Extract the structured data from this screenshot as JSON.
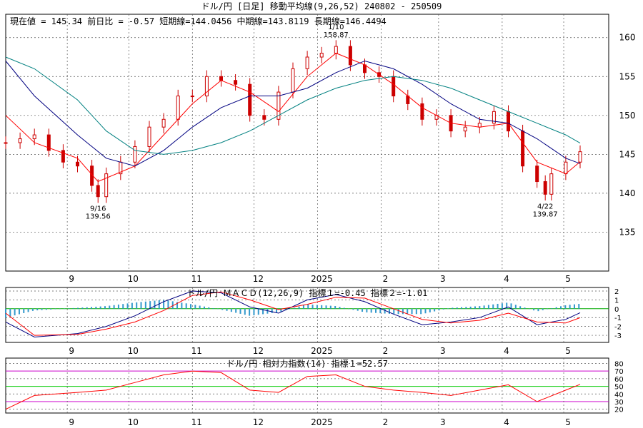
{
  "header": {
    "title": "ドル/円 [日足]  移動平均線(9,26,52)  240802 - 250509",
    "info": "現在値 = 145.34  前日比 = -0.57   短期線=144.0456   中期線=143.8119   長期線=146.4494"
  },
  "colors": {
    "background": "#ffffff",
    "candle": "#cc0000",
    "short_ma": "#ff0000",
    "mid_ma": "#000080",
    "long_ma": "#008080",
    "grid": "#555555",
    "macd_hist": "#3399cc",
    "macd_zero": "#00aa00",
    "macd_line": "#000080",
    "signal_line": "#ff0000",
    "rsi_line": "#ff0000",
    "rsi_band_outer": "#cc00cc",
    "rsi_band_mid": "#00cc00"
  },
  "chart_data": [
    {
      "type": "line",
      "title": "ドル/円 [日足]  移動平均線(9,26,52)  240802 - 250509",
      "x_labels": [
        "9",
        "10",
        "11",
        "12",
        "2025",
        "2",
        "3",
        "4",
        "5"
      ],
      "y_ticks": [
        "160",
        "155",
        "150",
        "145",
        "140",
        "135"
      ],
      "ylim": [
        130,
        163
      ],
      "grid": true,
      "series": [
        {
          "name": "終値",
          "x": [
            "08-02",
            "08-09",
            "08-16",
            "08-23",
            "08-30",
            "09-06",
            "09-13",
            "09-16",
            "09-20",
            "09-27",
            "10-04",
            "10-11",
            "10-18",
            "10-25",
            "11-01",
            "11-08",
            "11-15",
            "11-22",
            "11-29",
            "12-06",
            "12-13",
            "12-20",
            "12-27",
            "01-03",
            "01-10",
            "01-17",
            "01-24",
            "01-31",
            "02-07",
            "02-14",
            "02-21",
            "02-28",
            "03-07",
            "03-14",
            "03-21",
            "03-28",
            "04-04",
            "04-11",
            "04-18",
            "04-22",
            "04-25",
            "05-02",
            "05-09"
          ],
          "values": [
            146.5,
            147.0,
            147.5,
            145.5,
            144.0,
            143.5,
            141.0,
            139.56,
            142.5,
            144.0,
            146.0,
            148.5,
            149.5,
            152.5,
            152.5,
            155.0,
            154.5,
            154.0,
            150.0,
            149.5,
            153.0,
            156.0,
            157.5,
            158.0,
            158.87,
            156.5,
            155.5,
            155.0,
            152.5,
            151.5,
            149.5,
            150.0,
            148.0,
            148.5,
            149.0,
            150.5,
            148.0,
            143.5,
            141.5,
            139.87,
            142.5,
            144.0,
            145.34
          ]
        }
      ],
      "moving_averages": [
        {
          "label": "短期線",
          "x": [
            "08-02",
            "08-16",
            "09-06",
            "09-16",
            "10-04",
            "10-18",
            "11-01",
            "11-15",
            "11-29",
            "12-13",
            "12-27",
            "01-10",
            "01-24",
            "02-07",
            "02-21",
            "03-07",
            "03-21",
            "04-04",
            "04-18",
            "05-02",
            "05-09"
          ],
          "values": [
            150.0,
            146.5,
            144.5,
            141.5,
            143.5,
            147.5,
            151.5,
            154.5,
            153.0,
            150.5,
            155.0,
            158.0,
            156.5,
            154.0,
            151.0,
            149.0,
            148.5,
            149.0,
            144.0,
            142.5,
            144.0456
          ]
        },
        {
          "label": "中期線",
          "x": [
            "08-02",
            "08-16",
            "09-06",
            "09-20",
            "10-04",
            "10-18",
            "11-01",
            "11-15",
            "11-29",
            "12-13",
            "12-27",
            "01-10",
            "01-24",
            "02-07",
            "02-21",
            "03-07",
            "03-21",
            "04-04",
            "04-18",
            "05-02",
            "05-09"
          ],
          "values": [
            157.0,
            152.5,
            147.5,
            144.5,
            143.5,
            145.5,
            148.5,
            151.0,
            152.5,
            152.5,
            153.5,
            155.5,
            157.0,
            156.0,
            154.0,
            151.5,
            149.5,
            149.0,
            147.0,
            144.5,
            143.8119
          ]
        },
        {
          "label": "長期線",
          "x": [
            "08-02",
            "08-16",
            "09-06",
            "09-20",
            "10-04",
            "10-18",
            "11-01",
            "11-15",
            "11-29",
            "12-13",
            "12-27",
            "01-10",
            "01-24",
            "02-07",
            "02-21",
            "03-07",
            "03-21",
            "04-04",
            "04-18",
            "05-02",
            "05-09"
          ],
          "values": [
            157.5,
            156.0,
            152.0,
            148.0,
            145.5,
            145.0,
            145.5,
            146.5,
            148.0,
            150.0,
            152.0,
            153.5,
            154.5,
            155.0,
            154.5,
            153.5,
            152.0,
            150.5,
            149.0,
            147.5,
            146.4494
          ]
        }
      ],
      "annotations": [
        {
          "date": "1/10",
          "value": "158.87"
        },
        {
          "date": "9/16",
          "value": "139.56"
        },
        {
          "date": "4/22",
          "value": "139.87"
        }
      ]
    },
    {
      "type": "line",
      "title": "ドル/円  ＭＡＣＤ(12,26,9) 指標１=-0.45  指標２=-1.01",
      "x_labels": [
        "9",
        "10",
        "11",
        "12",
        "2025",
        "2",
        "3",
        "4",
        "5"
      ],
      "y_ticks": [
        "2",
        "1",
        "0",
        "-1",
        "-2",
        "-3"
      ],
      "ylim": [
        -3.8,
        2.4
      ],
      "grid": true,
      "x": [
        "08-02",
        "08-16",
        "09-06",
        "09-20",
        "10-04",
        "10-18",
        "11-01",
        "11-15",
        "11-29",
        "12-13",
        "12-27",
        "01-10",
        "01-24",
        "02-07",
        "02-21",
        "03-07",
        "03-21",
        "04-04",
        "04-18",
        "05-02",
        "05-09"
      ],
      "series": [
        {
          "name": "指標１",
          "values": [
            -1.5,
            -3.2,
            -2.8,
            -2.0,
            -0.8,
            0.8,
            2.0,
            1.8,
            0.2,
            -0.5,
            1.0,
            1.6,
            0.8,
            -0.6,
            -1.8,
            -1.5,
            -1.0,
            0.2,
            -1.8,
            -1.2,
            -0.45
          ]
        },
        {
          "name": "指標２",
          "values": [
            -0.5,
            -3.0,
            -2.9,
            -2.3,
            -1.5,
            -0.2,
            1.5,
            1.9,
            1.0,
            -0.1,
            0.5,
            1.3,
            1.2,
            0.0,
            -1.2,
            -1.6,
            -1.3,
            -0.5,
            -1.5,
            -1.6,
            -1.01
          ]
        }
      ],
      "histogram": {
        "name": "ヒストグラム",
        "values": [
          -1.0,
          -0.2,
          0.1,
          0.3,
          0.7,
          1.0,
          0.5,
          -0.1,
          -0.8,
          -0.4,
          0.5,
          0.3,
          -0.4,
          -0.6,
          -0.6,
          0.1,
          0.3,
          0.7,
          -0.3,
          0.4,
          0.56
        ]
      }
    },
    {
      "type": "line",
      "title": "ドル/円  相対力指数(14) 指標１=52.57",
      "x_labels": [
        "9",
        "10",
        "11",
        "12",
        "2025",
        "2",
        "3",
        "4",
        "5"
      ],
      "y_ticks": [
        "80",
        "70",
        "60",
        "50",
        "40",
        "30",
        "20"
      ],
      "ylim": [
        15,
        87
      ],
      "grid": true,
      "bands": [
        70,
        50,
        30
      ],
      "x": [
        "08-02",
        "08-16",
        "09-06",
        "09-20",
        "10-04",
        "10-18",
        "11-01",
        "11-15",
        "11-29",
        "12-13",
        "12-27",
        "01-10",
        "01-24",
        "02-07",
        "02-21",
        "03-07",
        "03-21",
        "04-04",
        "04-18",
        "05-02",
        "05-09"
      ],
      "series": [
        {
          "name": "指標１",
          "values": [
            20,
            38,
            42,
            45,
            55,
            65,
            70,
            68,
            45,
            42,
            63,
            65,
            50,
            45,
            42,
            38,
            45,
            52,
            30,
            45,
            52.57
          ]
        }
      ]
    }
  ]
}
